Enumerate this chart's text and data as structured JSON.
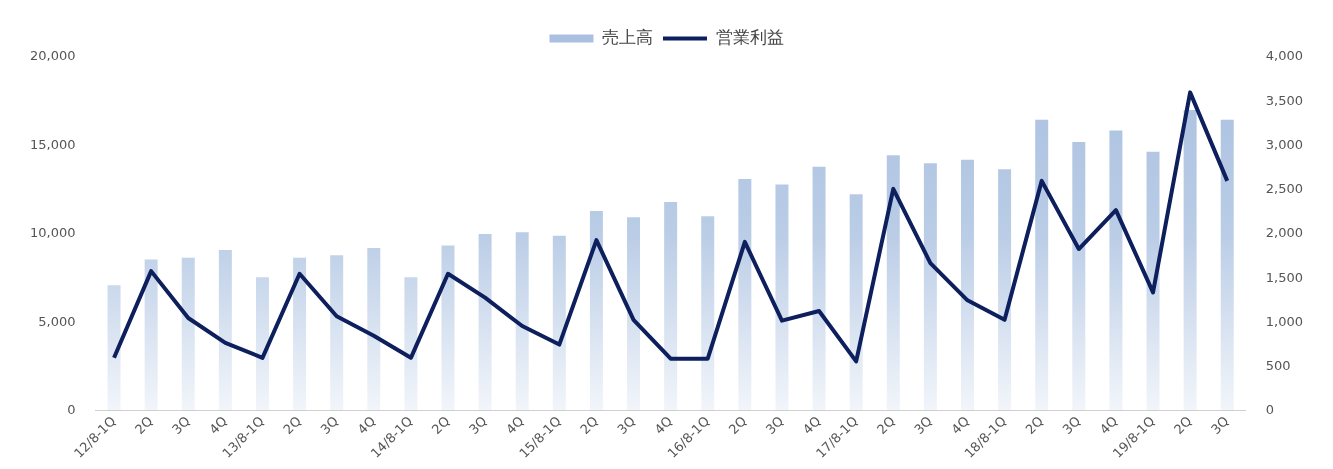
{
  "chart_data": {
    "type": "bar",
    "categories": [
      "12/8-1Q",
      "2Q",
      "3Q",
      "4Q",
      "13/8-1Q",
      "2Q",
      "3Q",
      "4Q",
      "14/8-1Q",
      "2Q",
      "3Q",
      "4Q",
      "15/8-1Q",
      "2Q",
      "3Q",
      "4Q",
      "16/8-1Q",
      "2Q",
      "3Q",
      "4Q",
      "17/8-1Q",
      "2Q",
      "3Q",
      "4Q",
      "18/8-1Q",
      "2Q",
      "3Q",
      "4Q",
      "19/8-1Q",
      "2Q",
      "3Q"
    ],
    "series": [
      {
        "name": "売上高",
        "color": "#a9c0e0",
        "values": [
          7100,
          8550,
          8650,
          9100,
          7550,
          8650,
          8800,
          9200,
          7550,
          9350,
          10000,
          10100,
          9900,
          11300,
          10950,
          11800,
          11000,
          13100,
          12800,
          13800,
          12250,
          14450,
          14000,
          14200,
          13650,
          16450,
          15200,
          15850,
          14650,
          17000,
          16450
        ]
      },
      {
        "name": "営業利益",
        "type": "line",
        "axis": "y2",
        "color": "#0d1f5c",
        "values": [
          600,
          1580,
          1050,
          770,
          600,
          1550,
          1070,
          850,
          600,
          1550,
          1280,
          960,
          750,
          1930,
          1030,
          590,
          590,
          1910,
          1020,
          1130,
          560,
          2510,
          1670,
          1250,
          1030,
          2600,
          1830,
          2270,
          1340,
          3600,
          2600
        ]
      }
    ],
    "ylim": [
      0,
      20000
    ],
    "yticks": [
      0,
      {
        "value": 5000,
        "label": "5,000"
      },
      {
        "value": 10000,
        "label": "10,000"
      },
      {
        "value": 15000,
        "label": "15,000"
      },
      {
        "value": 20000,
        "label": "20,000"
      }
    ],
    "y2lim": [
      0,
      4000
    ],
    "y2ticks": [
      0,
      500,
      {
        "value": 1000,
        "label": "1,000"
      },
      {
        "value": 1500,
        "label": "1,500"
      },
      {
        "value": 2000,
        "label": "2,000"
      },
      {
        "value": 2500,
        "label": "2,500"
      },
      {
        "value": 3000,
        "label": "3,000"
      },
      {
        "value": 3500,
        "label": "3,500"
      },
      {
        "value": 4000,
        "label": "4,000"
      }
    ],
    "grid": false,
    "legend": "top",
    "marker": "none",
    "line_style": "solid"
  }
}
